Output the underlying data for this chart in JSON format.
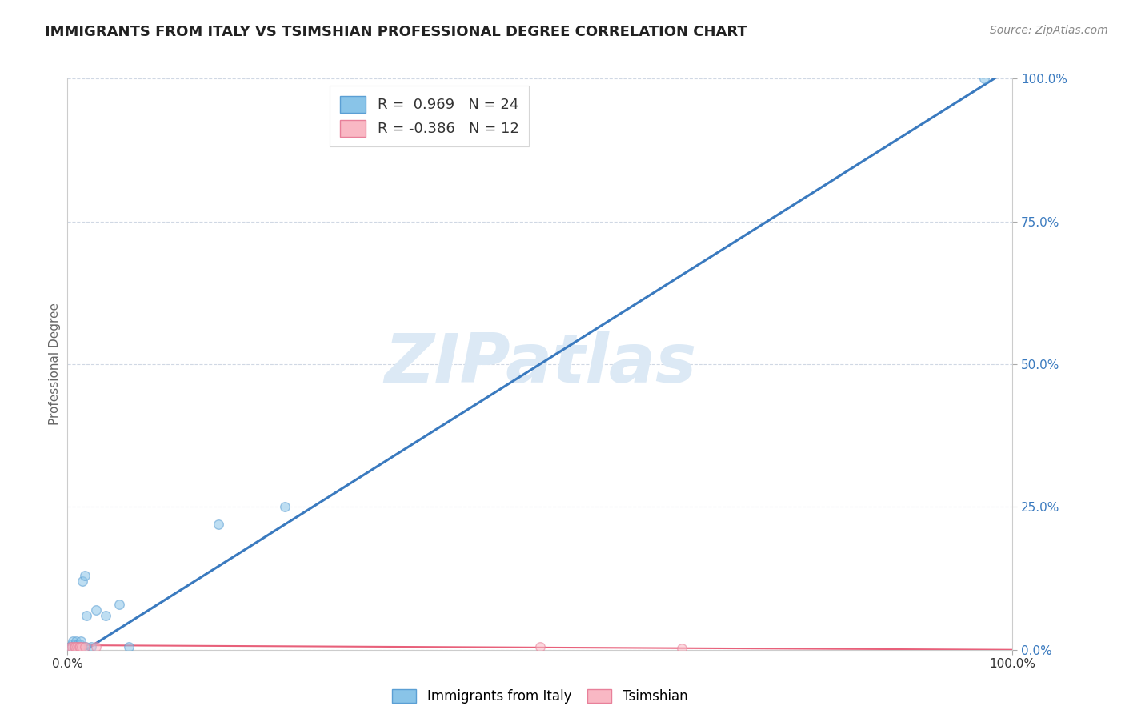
{
  "title": "IMMIGRANTS FROM ITALY VS TSIMSHIAN PROFESSIONAL DEGREE CORRELATION CHART",
  "source": "Source: ZipAtlas.com",
  "ylabel": "Professional Degree",
  "xlim": [
    0,
    1
  ],
  "ylim": [
    0,
    1
  ],
  "ytick_positions": [
    0.0,
    0.25,
    0.5,
    0.75,
    1.0
  ],
  "ytick_labels": [
    "0.0%",
    "25.0%",
    "50.0%",
    "75.0%",
    "100.0%"
  ],
  "grid_color": "#d0d8e4",
  "background_color": "#ffffff",
  "watermark_text": "ZIPatlas",
  "watermark_color": "#dce9f5",
  "legend1_label_blue": "R =  0.969   N = 24",
  "legend1_label_pink": "R = -0.386   N = 12",
  "legend2_label_blue": "Immigrants from Italy",
  "legend2_label_pink": "Tsimshian",
  "blue_scatter_x": [
    0.003,
    0.005,
    0.006,
    0.007,
    0.008,
    0.009,
    0.01,
    0.011,
    0.012,
    0.013,
    0.014,
    0.015,
    0.016,
    0.018,
    0.019,
    0.02,
    0.025,
    0.03,
    0.04,
    0.055,
    0.065,
    0.16,
    0.23,
    0.97
  ],
  "blue_scatter_y": [
    0.005,
    0.01,
    0.015,
    0.005,
    0.01,
    0.015,
    0.005,
    0.01,
    0.005,
    0.01,
    0.015,
    0.005,
    0.12,
    0.13,
    0.005,
    0.06,
    0.005,
    0.07,
    0.06,
    0.08,
    0.005,
    0.22,
    0.25,
    1.0
  ],
  "pink_scatter_x": [
    0.003,
    0.005,
    0.007,
    0.008,
    0.01,
    0.012,
    0.013,
    0.015,
    0.018,
    0.03,
    0.5,
    0.65
  ],
  "pink_scatter_y": [
    0.005,
    0.005,
    0.005,
    0.005,
    0.005,
    0.005,
    0.005,
    0.005,
    0.005,
    0.005,
    0.005,
    0.003
  ],
  "blue_line_x": [
    0.0,
    1.0
  ],
  "blue_line_y": [
    -0.02,
    1.02
  ],
  "pink_line_x": [
    0.0,
    1.0
  ],
  "pink_line_y": [
    0.008,
    0.0
  ],
  "blue_scatter_color": "#89c4e8",
  "blue_scatter_edge": "#5b9fd4",
  "pink_scatter_color": "#f9b8c4",
  "pink_scatter_edge": "#e8809a",
  "blue_line_color": "#3a7abf",
  "pink_line_color": "#e8607a",
  "ytick_color": "#3a7abf",
  "xtick_color": "#333333",
  "scatter_size": 70,
  "scatter_alpha": 0.55,
  "title_fontsize": 13,
  "source_fontsize": 10,
  "ylabel_fontsize": 11,
  "ytick_fontsize": 11,
  "xtick_fontsize": 11
}
